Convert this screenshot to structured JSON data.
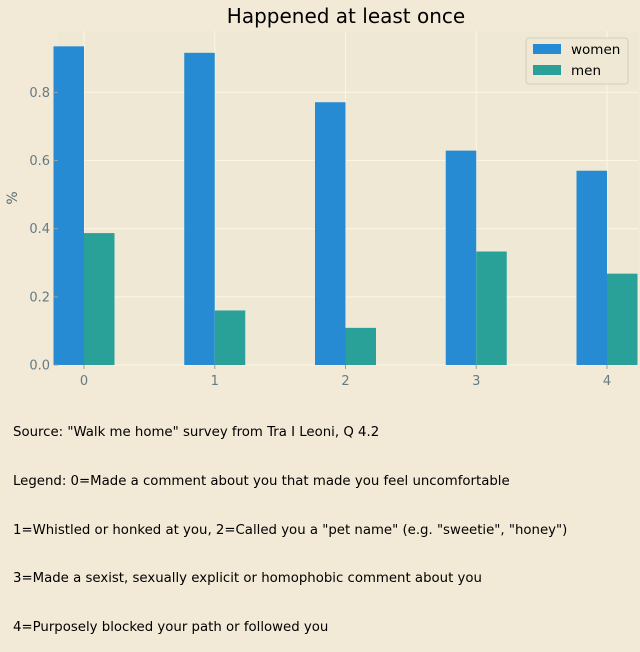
{
  "chart_data": {
    "type": "bar",
    "title": "Happened at least once",
    "xlabel": "",
    "ylabel": "%",
    "categories": [
      "0",
      "1",
      "2",
      "3",
      "4"
    ],
    "series": [
      {
        "name": "women",
        "color": "#268bd2",
        "values": [
          0.935,
          0.916,
          0.771,
          0.629,
          0.57
        ]
      },
      {
        "name": "men",
        "color": "#2aa198",
        "values": [
          0.387,
          0.16,
          0.109,
          0.333,
          0.268
        ]
      }
    ],
    "ylim": [
      0,
      0.98
    ],
    "yticks": [
      "0.0",
      "0.2",
      "0.4",
      "0.6",
      "0.8"
    ],
    "grid": true,
    "legend_position": "top-right"
  },
  "caption": [
    "Source: \"Walk me home\" survey from Tra I Leoni, Q 4.2",
    "Legend: 0=Made a comment about you that made you feel uncomfortable",
    "1=Whistled or honked at you, 2=Called you a \"pet name\" (e.g. \"sweetie\", \"honey\")",
    "3=Made a sexist, sexually explicit or homophobic comment about you",
    "4=Purposely blocked your path or followed you"
  ]
}
